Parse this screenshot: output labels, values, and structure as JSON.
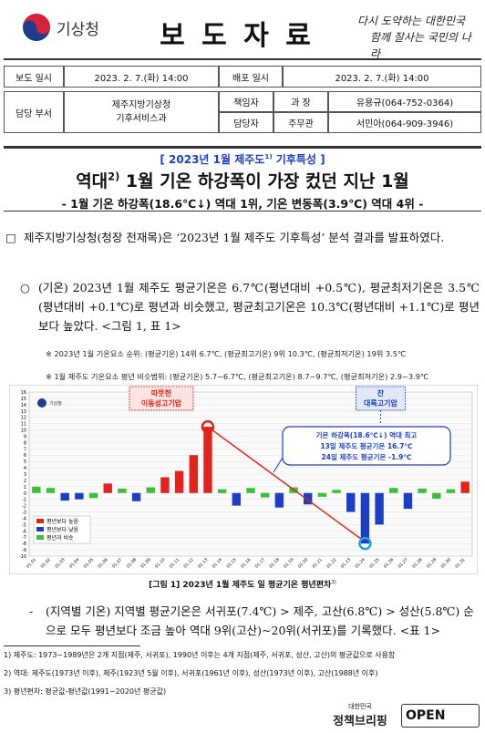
{
  "header": {
    "agency": "기상청",
    "title": "보 도 자 료",
    "slogan": [
      "다시 도약하는 대한민국",
      "함께 잘사는 국민의 나라"
    ]
  },
  "info_table": {
    "release_label": "보도 일시",
    "release_time": "2023. 2. 7.(화) 14:00",
    "dist_label": "배포 일시",
    "dist_time": "2023. 2. 7.(화) 14:00",
    "dept_label": "담당 부서",
    "dept": [
      "제주지방기상청",
      "기후서비스과"
    ],
    "contacts": [
      {
        "role": "책임자",
        "title": "과 장",
        "person": "유용규(064-752-0364)"
      },
      {
        "role": "담당자",
        "title": "주무관",
        "person": "서민아(064-909-3946)"
      }
    ]
  },
  "headline": {
    "kicker": {
      "pre": "[ 2023년 1월 제주도",
      "sup": "1)",
      "post": " 기후특성 ]"
    },
    "title": {
      "pre": "역대",
      "sup": "2)",
      "post": " 1월 기온 하강폭이 가장 컸던 지난 1월"
    },
    "subtitle": "- 1월 기온 하강폭(18.6℃↓) 역대 1위, 기온 변동폭(3.9℃) 역대 4위 -"
  },
  "body": {
    "intro_marker": "□",
    "intro": "제주지방기상청(청장 전재목)은 ‘2023년 1월 제주도 기후특성’ 분석 결과를 발표하였다.",
    "point_marker": "○",
    "point": "(기온) 2023년 1월 제주도 평균기온은 6.7℃(평년대비 +0.5℃), 평균최저기온은 3.5℃(평년대비 +0.1℃)로 평년과 비슷했고, 평균최고기온은 10.3℃(평년대비 +1.1℃)로 평년보다 높았다. <그림 1, 표 1>",
    "notes": [
      "※ 2023년 1월 기온요소 순위: (평균기온) 14위 6.7℃, (평균최고기온) 9위 10.3℃, (평균최저기온) 19위 3.5℃",
      "※ 1월 제주도 기온요소 평년 비슷범위: (평균기온) 5.7~6.7℃, (평균최고기온) 8.7~9.7℃, (평균최저기온) 2.9~3.9℃"
    ],
    "figure_caption": {
      "pre": "[그림 1] 2023년 1월 제주도 일 평균기온 평년편차",
      "sup": "3)"
    },
    "regional_marker": "-",
    "regional": "(지역별 기온) 지역별 평균기온은 서귀포(7.4℃) > 제주, 고산(6.8℃) > 성산(5.8℃) 순으로 모두 평년보다 조금 높아 역대 9위(고산)~20위(서귀포)를 기록했다. <표 1>"
  },
  "footnotes": [
    "1) 제주도: 1973~1989년은 2개 지점(제주, 서귀포), 1990년 이후는 4개 지점(제주, 서귀포, 성산, 고산)의 평균값으로 사용함",
    "2) 역대: 제주도(1973년 이후), 제주(1923년 5월 이후), 서귀포(1961년 이후), 성산(1973년 이후), 고산(1988년 이후)",
    "3) 평년편차: 평균값-평년값(1991~2020년 평균값)"
  ],
  "footer": {
    "brand_small": "대한민국",
    "brand": "정책브리핑",
    "open": "OPEN"
  },
  "chart_data": {
    "type": "bar",
    "logo_text": "기상청",
    "categories": [
      "01.01",
      "01.02",
      "01.03",
      "01.04",
      "01.05",
      "01.06",
      "01.07",
      "01.08",
      "01.09",
      "01.10",
      "01.11",
      "01.12",
      "01.13",
      "01.14",
      "01.15",
      "01.16",
      "01.17",
      "01.18",
      "01.19",
      "01.20",
      "01.21",
      "01.22",
      "01.23",
      "01.24",
      "01.25",
      "01.26",
      "01.27",
      "01.28",
      "01.29",
      "01.30",
      "01.31"
    ],
    "series": [
      {
        "name": "평년보다 높음",
        "color": "#e3231b",
        "values": [
          null,
          null,
          null,
          null,
          null,
          1.5,
          null,
          null,
          null,
          2.5,
          3.5,
          6.0,
          10.5,
          null,
          null,
          null,
          null,
          null,
          null,
          null,
          null,
          null,
          null,
          null,
          null,
          null,
          null,
          null,
          null,
          null,
          1.8
        ]
      },
      {
        "name": "평년보다 낮음",
        "color": "#1d3fc6",
        "values": [
          null,
          null,
          -1.2,
          -1.0,
          null,
          null,
          null,
          -1.3,
          null,
          null,
          null,
          null,
          null,
          null,
          -2.0,
          null,
          null,
          -2.3,
          null,
          -1.8,
          null,
          null,
          -3.0,
          -8.0,
          -5.0,
          null,
          -2.5,
          null,
          null,
          null,
          null
        ]
      },
      {
        "name": "평년과 비슷",
        "color": "#3dbf3a",
        "values": [
          1.0,
          0.8,
          null,
          null,
          -0.8,
          null,
          0.7,
          null,
          0.9,
          null,
          null,
          null,
          null,
          0.6,
          null,
          0.8,
          -0.7,
          null,
          0.9,
          null,
          -0.6,
          0.5,
          null,
          null,
          null,
          0.8,
          null,
          0.7,
          -0.9,
          0.6,
          null
        ]
      }
    ],
    "ylim": [
      -10,
      16
    ],
    "yticks": [
      16,
      15,
      14,
      13,
      12,
      11,
      10,
      9,
      8,
      7,
      6,
      5,
      4,
      3,
      2,
      1,
      0,
      -1,
      -2,
      -3,
      -4,
      -5,
      -6,
      -7,
      -8,
      -9,
      -10
    ],
    "grid": true,
    "legend": "lower left",
    "annotations": [
      {
        "lines": [
          "따뜻한",
          "이동성고기압"
        ],
        "color": "#e3231b"
      },
      {
        "lines": [
          "찬",
          "대륙고기압"
        ],
        "color": "#1d3fc6"
      },
      {
        "lines": [
          "기온 하강폭(18.6℃↓) 역대 최고",
          "13일 제주도 평균기온 16.7℃",
          "24일 제주도 평균기온 -1.9℃"
        ],
        "color": "#1d3fc6"
      }
    ]
  }
}
